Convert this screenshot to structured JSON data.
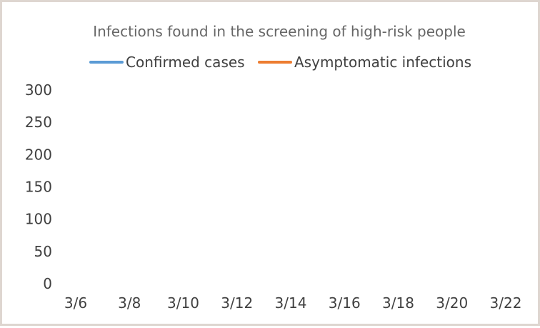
{
  "chart_data": {
    "type": "line",
    "title": "Infections found in the screening of high-risk people",
    "xlabel": "",
    "ylabel": "",
    "ylim": [
      0,
      300
    ],
    "y_ticks": [
      "300",
      "250",
      "200",
      "150",
      "100",
      "50",
      "0"
    ],
    "x_ticks": [
      "3/6",
      "3/8",
      "3/10",
      "3/12",
      "3/14",
      "3/16",
      "3/18",
      "3/20",
      "3/22"
    ],
    "grid": false,
    "legend_position": "top",
    "series": [
      {
        "name": "Confirmed cases",
        "color": "#5b9bd5",
        "values": []
      },
      {
        "name": "Asymptomatic infections",
        "color": "#ed7d31",
        "values": []
      }
    ]
  }
}
